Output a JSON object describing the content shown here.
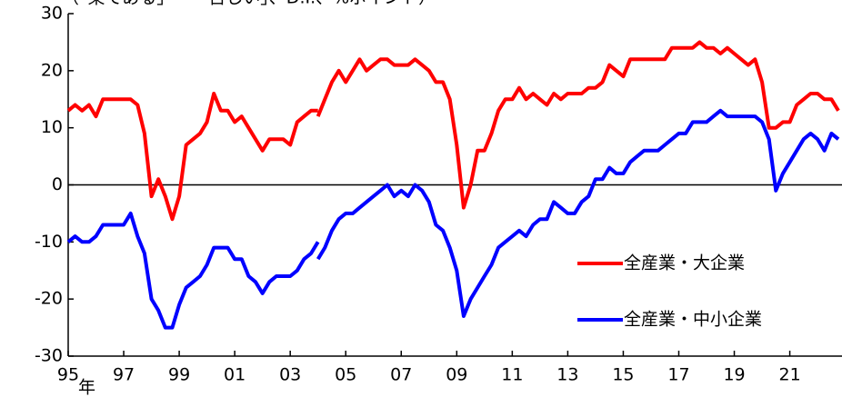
{
  "chart_data": {
    "type": "line",
    "title": "（「楽である」－「苦しい」、D.I.、%ポイント）",
    "x_label": "年",
    "x": [
      1995,
      1995.25,
      1995.5,
      1995.75,
      1996,
      1996.25,
      1996.5,
      1996.75,
      1997,
      1997.25,
      1997.5,
      1997.75,
      1998,
      1998.25,
      1998.5,
      1998.75,
      1999,
      1999.25,
      1999.5,
      1999.75,
      2000,
      2000.25,
      2000.5,
      2000.75,
      2001,
      2001.25,
      2001.5,
      2001.75,
      2002,
      2002.25,
      2002.5,
      2002.75,
      2003,
      2003.25,
      2003.5,
      2003.75,
      2004,
      2004,
      2004,
      2004.25,
      2004.5,
      2004.75,
      2005,
      2005.25,
      2005.5,
      2005.75,
      2006,
      2006.25,
      2006.5,
      2006.75,
      2007,
      2007.25,
      2007.5,
      2007.75,
      2008,
      2008.25,
      2008.5,
      2008.75,
      2009,
      2009.25,
      2009.5,
      2009.75,
      2010,
      2010.25,
      2010.5,
      2010.75,
      2011,
      2011.25,
      2011.5,
      2011.75,
      2012,
      2012.25,
      2012.5,
      2012.75,
      2013,
      2013.25,
      2013.5,
      2013.75,
      2014,
      2014.25,
      2014.5,
      2014.75,
      2015,
      2015.25,
      2015.5,
      2015.75,
      2016,
      2016.25,
      2016.5,
      2016.75,
      2017,
      2017.25,
      2017.5,
      2017.75,
      2018,
      2018.25,
      2018.5,
      2018.75,
      2019,
      2019.25,
      2019.5,
      2019.75,
      2020,
      2020.25,
      2020.5,
      2020.75,
      2021,
      2021.25,
      2021.5,
      2021.75,
      2022,
      2022.25,
      2022.5,
      2022.75
    ],
    "series": [
      {
        "name": "全産業・大企業",
        "color": "#ff0000",
        "values": [
          13,
          14,
          13,
          14,
          12,
          15,
          15,
          15,
          15,
          15,
          14,
          9,
          -2,
          1,
          -2,
          -6,
          -2,
          7,
          8,
          9,
          11,
          16,
          13,
          13,
          11,
          12,
          10,
          8,
          6,
          8,
          8,
          8,
          7,
          11,
          12,
          13,
          13,
          null,
          12,
          15,
          18,
          20,
          18,
          20,
          22,
          20,
          21,
          22,
          22,
          21,
          21,
          21,
          22,
          21,
          20,
          18,
          18,
          15,
          7,
          -4,
          0,
          6,
          6,
          9,
          13,
          15,
          15,
          17,
          15,
          16,
          15,
          14,
          16,
          15,
          16,
          16,
          16,
          17,
          17,
          18,
          21,
          20,
          19,
          22,
          22,
          22,
          22,
          22,
          22,
          24,
          24,
          24,
          24,
          25,
          24,
          24,
          23,
          24,
          23,
          22,
          21,
          22,
          18,
          10,
          10,
          11,
          11,
          14,
          15,
          16,
          16,
          15,
          15,
          13
        ]
      },
      {
        "name": "全産業・中小企業",
        "color": "#0000ff",
        "values": [
          -10,
          -9,
          -10,
          -10,
          -9,
          -7,
          -7,
          -7,
          -7,
          -5,
          -9,
          -12,
          -20,
          -22,
          -25,
          -25,
          -21,
          -18,
          -17,
          -16,
          -14,
          -11,
          -11,
          -11,
          -13,
          -13,
          -16,
          -17,
          -19,
          -17,
          -16,
          -16,
          -16,
          -15,
          -13,
          -12,
          -10,
          null,
          -13,
          -11,
          -8,
          -6,
          -5,
          -5,
          -4,
          -3,
          -2,
          -1,
          0,
          -2,
          -1,
          -2,
          0,
          -1,
          -3,
          -7,
          -8,
          -11,
          -15,
          -23,
          -20,
          -18,
          -16,
          -14,
          -11,
          -10,
          -9,
          -8,
          -9,
          -7,
          -6,
          -6,
          -3,
          -4,
          -5,
          -5,
          -3,
          -2,
          1,
          1,
          3,
          2,
          2,
          4,
          5,
          6,
          6,
          6,
          7,
          8,
          9,
          9,
          11,
          11,
          11,
          12,
          13,
          12,
          12,
          12,
          12,
          12,
          11,
          8,
          -1,
          2,
          4,
          6,
          8,
          9,
          8,
          6,
          9,
          8
        ]
      }
    ],
    "xlim": [
      1995,
      2022.75
    ],
    "xticks": [
      {
        "value": 1995,
        "label": "95"
      },
      {
        "value": 1997,
        "label": "97"
      },
      {
        "value": 1999,
        "label": "99"
      },
      {
        "value": 2001,
        "label": "01"
      },
      {
        "value": 2003,
        "label": "03"
      },
      {
        "value": 2005,
        "label": "05"
      },
      {
        "value": 2007,
        "label": "07"
      },
      {
        "value": 2009,
        "label": "09"
      },
      {
        "value": 2011,
        "label": "11"
      },
      {
        "value": 2013,
        "label": "13"
      },
      {
        "value": 2015,
        "label": "15"
      },
      {
        "value": 2017,
        "label": "17"
      },
      {
        "value": 2019,
        "label": "19"
      },
      {
        "value": 2021,
        "label": "21"
      }
    ],
    "ylim": [
      -30,
      30
    ],
    "yticks": [
      30,
      20,
      10,
      0,
      -10,
      -20,
      -30
    ]
  }
}
